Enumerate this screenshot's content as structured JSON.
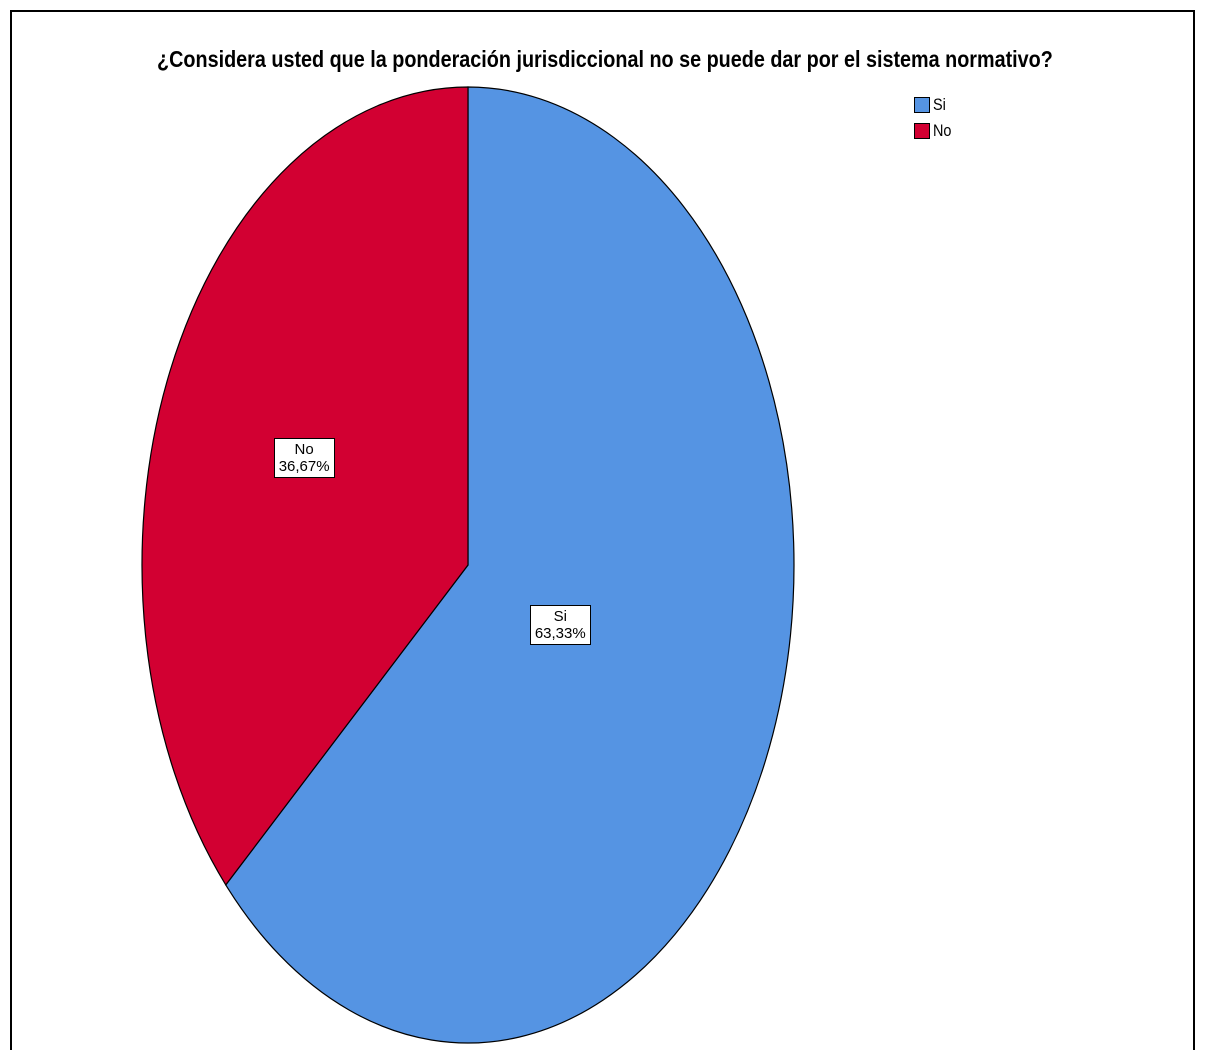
{
  "chart_data": {
    "type": "pie",
    "title": "¿Considera usted que la ponderación jurisdiccional no se puede dar por el sistema normativo?",
    "legend_position": "top-right",
    "slices": [
      {
        "name": "Si",
        "value": 63.33,
        "label": "63,33%",
        "color": "#5594e3"
      },
      {
        "name": "No",
        "value": 36.67,
        "label": "36,67%",
        "color": "#d20032"
      }
    ]
  }
}
